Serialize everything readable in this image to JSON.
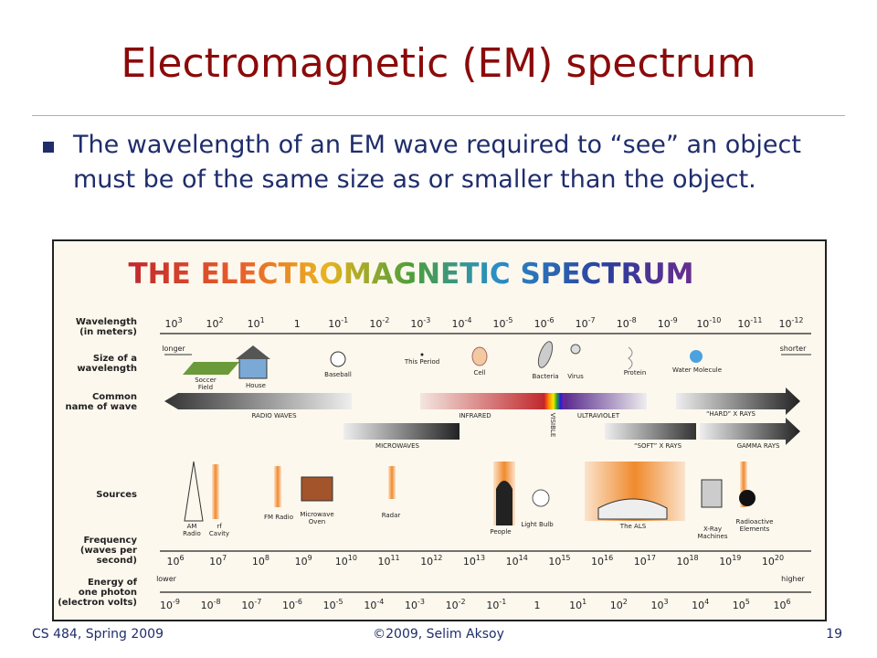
{
  "title": "Electromagnetic (EM) spectrum",
  "bullet": "The wavelength of an EM wave required to “see” an object must be of the same size as or smaller than the object.",
  "figure": {
    "title": "THE ELECTROMAGNETIC SPECTRUM",
    "row_labels": {
      "wavelength": [
        "Wavelength",
        "(in meters)"
      ],
      "size": [
        "Size of a",
        "wavelength"
      ],
      "name": [
        "Common",
        "name of wave"
      ],
      "sources": [
        "Sources"
      ],
      "frequency": [
        "Frequency",
        "(waves per",
        "second)"
      ],
      "energy": [
        "Energy of",
        "one photon",
        "(electron volts)"
      ]
    },
    "wavelength_ticks": [
      {
        "base": "10",
        "exp": "3"
      },
      {
        "base": "10",
        "exp": "2"
      },
      {
        "base": "10",
        "exp": "1"
      },
      {
        "base": "1"
      },
      {
        "base": "10",
        "exp": "-1"
      },
      {
        "base": "10",
        "exp": "-2"
      },
      {
        "base": "10",
        "exp": "-3"
      },
      {
        "base": "10",
        "exp": "-4"
      },
      {
        "base": "10",
        "exp": "-5"
      },
      {
        "base": "10",
        "exp": "-6"
      },
      {
        "base": "10",
        "exp": "-7"
      },
      {
        "base": "10",
        "exp": "-8"
      },
      {
        "base": "10",
        "exp": "-9"
      },
      {
        "base": "10",
        "exp": "-10"
      },
      {
        "base": "10",
        "exp": "-11"
      },
      {
        "base": "10",
        "exp": "-12"
      }
    ],
    "longer": "longer",
    "shorter": "shorter",
    "sizes": [
      [
        "Soccer",
        "Field"
      ],
      [
        "House"
      ],
      [
        "Baseball"
      ],
      [
        "This Period"
      ],
      [
        "Cell"
      ],
      [
        "Bacteria"
      ],
      [
        "Virus"
      ],
      [
        "Protein"
      ],
      [
        "Water Molecule"
      ]
    ],
    "wave_names": [
      "RADIO WAVES",
      "INFRARED",
      "VISIBLE",
      "ULTRAVIOLET",
      "“HARD” X RAYS",
      "MICROWAVES",
      "“SOFT” X RAYS",
      "GAMMA RAYS"
    ],
    "sources": [
      [
        "AM",
        "Radio"
      ],
      [
        "rf",
        "Cavity"
      ],
      [
        "FM Radio"
      ],
      [
        "Microwave",
        "Oven"
      ],
      [
        "Radar"
      ],
      [
        "People"
      ],
      [
        "Light Bulb"
      ],
      [
        "The ALS"
      ],
      [
        "X-Ray",
        "Machines"
      ],
      [
        "Radioactive",
        "Elements"
      ]
    ],
    "frequency_ticks": [
      {
        "base": "10",
        "exp": "6"
      },
      {
        "base": "10",
        "exp": "7"
      },
      {
        "base": "10",
        "exp": "8"
      },
      {
        "base": "10",
        "exp": "9"
      },
      {
        "base": "10",
        "exp": "10"
      },
      {
        "base": "10",
        "exp": "11"
      },
      {
        "base": "10",
        "exp": "12"
      },
      {
        "base": "10",
        "exp": "13"
      },
      {
        "base": "10",
        "exp": "14"
      },
      {
        "base": "10",
        "exp": "15"
      },
      {
        "base": "10",
        "exp": "16"
      },
      {
        "base": "10",
        "exp": "17"
      },
      {
        "base": "10",
        "exp": "18"
      },
      {
        "base": "10",
        "exp": "19"
      },
      {
        "base": "10",
        "exp": "20"
      }
    ],
    "lower": "lower",
    "higher": "higher",
    "energy_ticks": [
      {
        "base": "10",
        "exp": "-9"
      },
      {
        "base": "10",
        "exp": "-8"
      },
      {
        "base": "10",
        "exp": "-7"
      },
      {
        "base": "10",
        "exp": "-6"
      },
      {
        "base": "10",
        "exp": "-5"
      },
      {
        "base": "10",
        "exp": "-4"
      },
      {
        "base": "10",
        "exp": "-3"
      },
      {
        "base": "10",
        "exp": "-2"
      },
      {
        "base": "10",
        "exp": "-1"
      },
      {
        "base": "1"
      },
      {
        "base": "10",
        "exp": "1"
      },
      {
        "base": "10",
        "exp": "2"
      },
      {
        "base": "10",
        "exp": "3"
      },
      {
        "base": "10",
        "exp": "4"
      },
      {
        "base": "10",
        "exp": "5"
      },
      {
        "base": "10",
        "exp": "6"
      }
    ]
  },
  "footer": {
    "left": "CS 484, Spring 2009",
    "center": "©2009, Selim Aksoy",
    "page": "19"
  }
}
